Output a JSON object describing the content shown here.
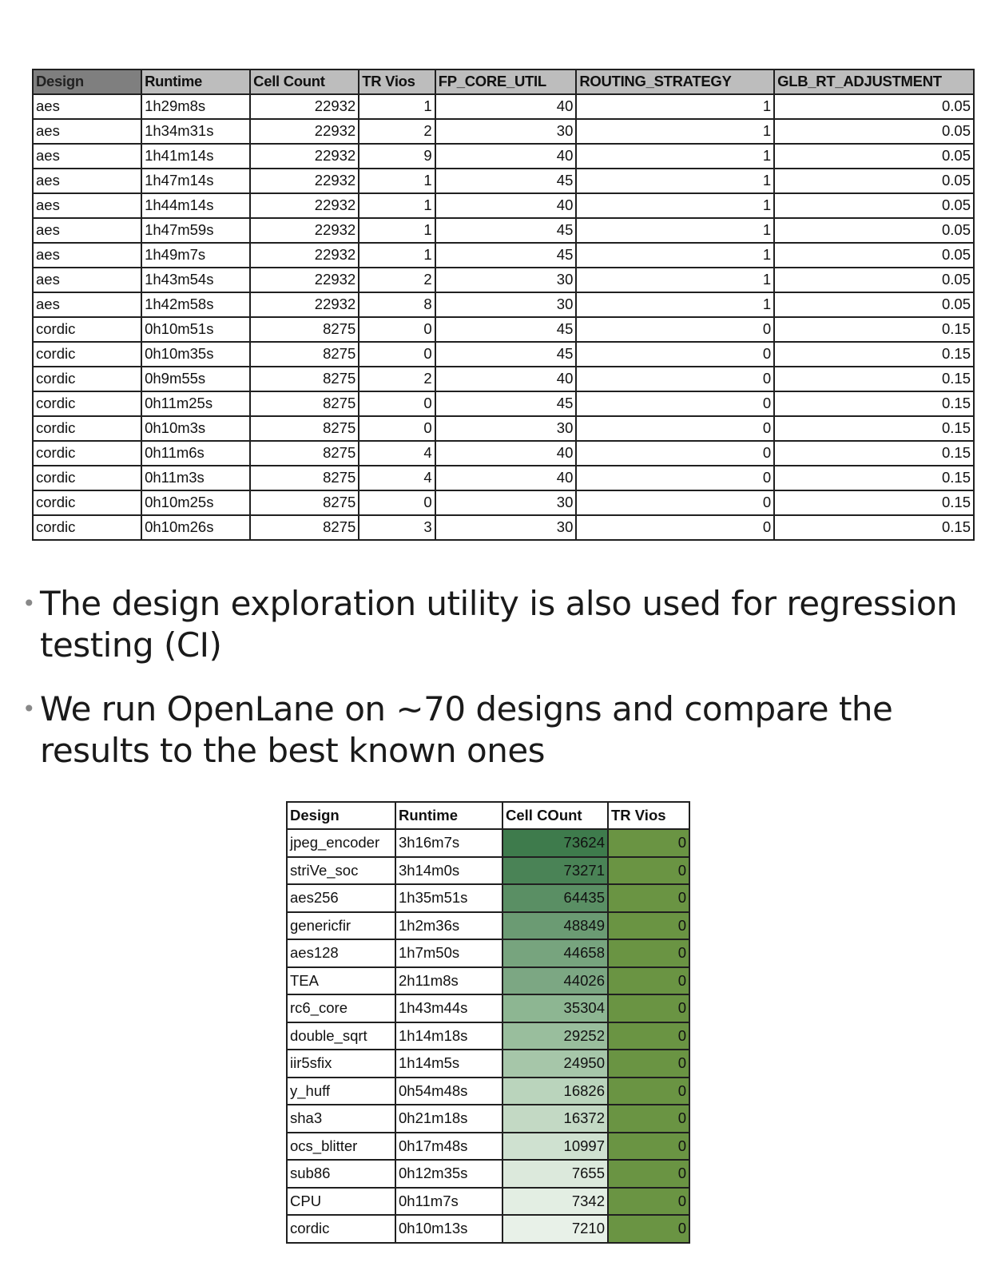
{
  "top_table": {
    "headers": [
      "Design",
      "Runtime",
      "Cell Count",
      "TR Vios",
      "FP_CORE_UTIL",
      "ROUTING_STRATEGY",
      "GLB_RT_ADJUSTMENT"
    ],
    "rows": [
      [
        "aes",
        "1h29m8s",
        "22932",
        "1",
        "40",
        "1",
        "0.05"
      ],
      [
        "aes",
        "1h34m31s",
        "22932",
        "2",
        "30",
        "1",
        "0.05"
      ],
      [
        "aes",
        "1h41m14s",
        "22932",
        "9",
        "40",
        "1",
        "0.05"
      ],
      [
        "aes",
        "1h47m14s",
        "22932",
        "1",
        "45",
        "1",
        "0.05"
      ],
      [
        "aes",
        "1h44m14s",
        "22932",
        "1",
        "40",
        "1",
        "0.05"
      ],
      [
        "aes",
        "1h47m59s",
        "22932",
        "1",
        "45",
        "1",
        "0.05"
      ],
      [
        "aes",
        "1h49m7s",
        "22932",
        "1",
        "45",
        "1",
        "0.05"
      ],
      [
        "aes",
        "1h43m54s",
        "22932",
        "2",
        "30",
        "1",
        "0.05"
      ],
      [
        "aes",
        "1h42m58s",
        "22932",
        "8",
        "30",
        "1",
        "0.05"
      ],
      [
        "cordic",
        "0h10m51s",
        "8275",
        "0",
        "45",
        "0",
        "0.15"
      ],
      [
        "cordic",
        "0h10m35s",
        "8275",
        "0",
        "45",
        "0",
        "0.15"
      ],
      [
        "cordic",
        "0h9m55s",
        "8275",
        "2",
        "40",
        "0",
        "0.15"
      ],
      [
        "cordic",
        "0h11m25s",
        "8275",
        "0",
        "45",
        "0",
        "0.15"
      ],
      [
        "cordic",
        "0h10m3s",
        "8275",
        "0",
        "30",
        "0",
        "0.15"
      ],
      [
        "cordic",
        "0h11m6s",
        "8275",
        "4",
        "40",
        "0",
        "0.15"
      ],
      [
        "cordic",
        "0h11m3s",
        "8275",
        "4",
        "40",
        "0",
        "0.15"
      ],
      [
        "cordic",
        "0h10m25s",
        "8275",
        "0",
        "30",
        "0",
        "0.15"
      ],
      [
        "cordic",
        "0h10m26s",
        "8275",
        "3",
        "30",
        "0",
        "0.15"
      ]
    ]
  },
  "bullets": [
    "The design exploration utility is also used for regression testing (CI)",
    "We run OpenLane on ~70 designs and compare the results to the best known ones"
  ],
  "bottom_table": {
    "headers": [
      "Design",
      "Runtime",
      "Cell COunt",
      "TR Vios"
    ],
    "rows": [
      [
        "jpeg_encoder",
        "3h16m7s",
        "73624",
        "0"
      ],
      [
        "striVe_soc",
        "3h14m0s",
        "73271",
        "0"
      ],
      [
        "aes256",
        "1h35m51s",
        "64435",
        "0"
      ],
      [
        "genericfir",
        "1h2m36s",
        "48849",
        "0"
      ],
      [
        "aes128",
        "1h7m50s",
        "44658",
        "0"
      ],
      [
        "TEA",
        "2h11m8s",
        "44026",
        "0"
      ],
      [
        "rc6_core",
        "1h43m44s",
        "35304",
        "0"
      ],
      [
        "double_sqrt",
        "1h14m18s",
        "29252",
        "0"
      ],
      [
        "iir5sfix",
        "1h14m5s",
        "24950",
        "0"
      ],
      [
        "y_huff",
        "0h54m48s",
        "16826",
        "0"
      ],
      [
        "sha3",
        "0h21m18s",
        "16372",
        "0"
      ],
      [
        "ocs_blitter",
        "0h17m48s",
        "10997",
        "0"
      ],
      [
        "sub86",
        "0h12m35s",
        "7655",
        "0"
      ],
      [
        "CPU",
        "0h11m7s",
        "7342",
        "0"
      ],
      [
        "cordic",
        "0h10m13s",
        "7210",
        "0"
      ]
    ],
    "cell_count_colors": [
      "#3e7b4c",
      "#4a8356",
      "#5a8f64",
      "#6b9b73",
      "#77a47e",
      "#7ca783",
      "#8db692",
      "#99be9d",
      "#a6c6a9",
      "#bad4bc",
      "#c3d9c4",
      "#cfe1d0",
      "#dce9dc",
      "#e3eee3",
      "#e8f1e8"
    ],
    "tr_vios_color": "#6a9443"
  }
}
